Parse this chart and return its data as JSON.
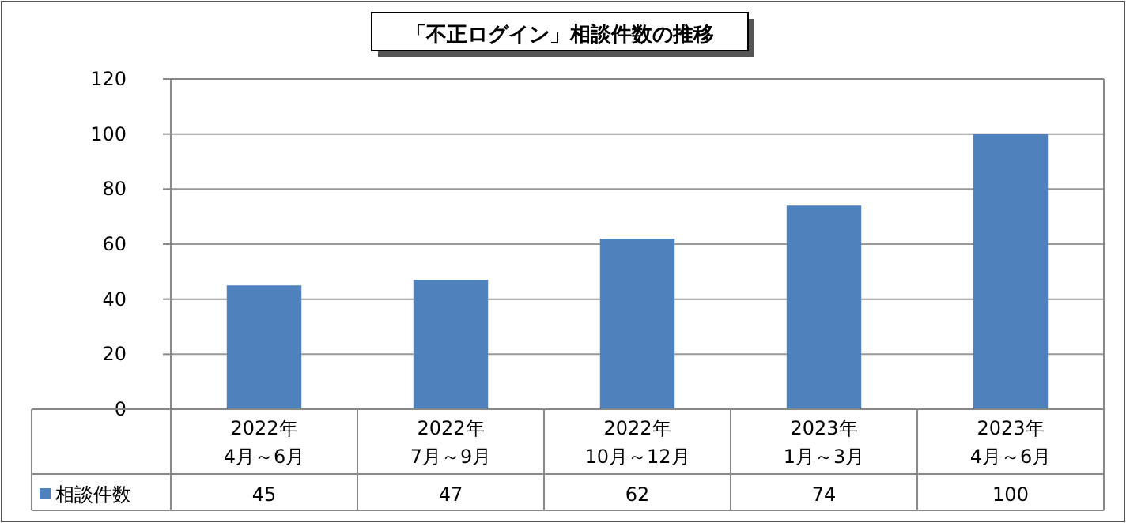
{
  "chart_data": {
    "type": "bar",
    "title": "「不正ログイン」相談件数の推移",
    "categories": [
      "2022年\n4月～6月",
      "2022年\n7月～9月",
      "2022年\n10月～12月",
      "2023年\n1月～3月",
      "2023年\n4月～6月"
    ],
    "series": [
      {
        "name": "相談件数",
        "color": "#4f81bd",
        "values": [
          45,
          47,
          62,
          74,
          100
        ]
      }
    ],
    "ylim": [
      0,
      120
    ],
    "yticks": [
      0,
      20,
      40,
      60,
      80,
      100,
      120
    ],
    "grid": "y",
    "legend": "bottom",
    "data_labels": true
  }
}
